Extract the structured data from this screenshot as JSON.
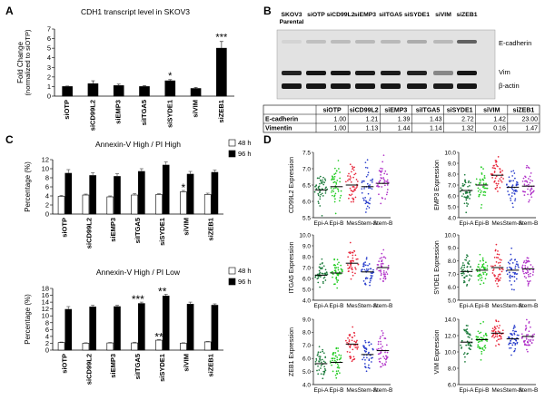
{
  "panels": {
    "A": {
      "letter": "A"
    },
    "B": {
      "letter": "B"
    },
    "C": {
      "letter": "C"
    },
    "D": {
      "letter": "D"
    }
  },
  "chart_data": [
    {
      "id": "A",
      "type": "bar",
      "title": "CDH1 transcript level in SKOV3",
      "ylabel": "Fold Change",
      "ylabel2": "(normalized to siOTP)",
      "categories": [
        "siOTP",
        "siCD99L2",
        "siEMP3",
        "siITGA5",
        "siSYDE1",
        "siVIM",
        "siZEB1"
      ],
      "values": [
        1.0,
        1.3,
        1.1,
        1.0,
        1.6,
        0.8,
        5.0
      ],
      "errors": [
        0.05,
        0.3,
        0.15,
        0.1,
        0.12,
        0.1,
        0.7
      ],
      "significance": [
        "",
        "",
        "",
        "",
        "*",
        "",
        "***"
      ],
      "ylim": [
        0,
        7
      ],
      "yticks": [
        "0",
        "1",
        "2",
        "3",
        "4",
        "5",
        "6",
        "7"
      ]
    },
    {
      "id": "C1",
      "type": "bar",
      "title": "Annexin-V High / PI High",
      "ylabel": "Percentage (%)",
      "categories": [
        "siOTP",
        "siCD99L2",
        "siEMP3",
        "siITGA5",
        "siSYDE1",
        "siVIM",
        "siZEB1"
      ],
      "series": [
        {
          "name": "48 h",
          "values": [
            3.9,
            4.2,
            3.8,
            4.2,
            4.3,
            4.9,
            4.3
          ],
          "errors": [
            0.2,
            0.2,
            0.2,
            0.3,
            0.2,
            0.3,
            0.3
          ]
        },
        {
          "name": "96 h",
          "values": [
            9.0,
            8.5,
            8.3,
            9.4,
            10.8,
            8.8,
            9.2
          ],
          "errors": [
            0.8,
            0.6,
            0.6,
            0.6,
            0.7,
            0.6,
            0.5
          ]
        }
      ],
      "significance": [
        "",
        "",
        "",
        "",
        "",
        "*",
        ""
      ],
      "ylim": [
        0,
        12
      ],
      "yticks": [
        "0",
        "2",
        "4",
        "6",
        "8",
        "10",
        "12"
      ]
    },
    {
      "id": "C2",
      "type": "bar",
      "title": "Annexin-V High / PI Low",
      "ylabel": "Percentage (%)",
      "categories": [
        "siOTP",
        "siCD99L2",
        "siEMP3",
        "siITGA5",
        "siSYDE1",
        "siVIM",
        "siZEB1"
      ],
      "series": [
        {
          "name": "48 h",
          "values": [
            2.2,
            2.0,
            2.1,
            2.1,
            2.9,
            2.0,
            2.4
          ],
          "errors": [
            0.15,
            0.15,
            0.15,
            0.2,
            0.2,
            0.15,
            0.15
          ]
        },
        {
          "name": "96 h",
          "values": [
            11.9,
            12.6,
            12.7,
            13.6,
            15.8,
            13.4,
            13.1
          ],
          "errors": [
            0.8,
            0.5,
            0.4,
            0.4,
            0.5,
            0.6,
            0.4
          ]
        }
      ],
      "significance_48": [
        "",
        "",
        "",
        "",
        "**",
        "",
        ""
      ],
      "significance_96": [
        "",
        "",
        "",
        "***",
        "**",
        "",
        ""
      ],
      "ylim": [
        0,
        18
      ],
      "yticks": [
        "0",
        "2",
        "4",
        "6",
        "8",
        "10",
        "12",
        "14",
        "16",
        "18"
      ]
    },
    {
      "id": "D",
      "type": "scatter",
      "categories": [
        "Epi-A",
        "Epi-B",
        "Mes",
        "Stem-A",
        "Stem-B"
      ],
      "colors": [
        "#1a7a3a",
        "#22cc22",
        "#e8283c",
        "#2a3ecc",
        "#b030c8"
      ],
      "plots": [
        {
          "ylabel": "CD99L2 Expression",
          "yticks": [
            "5.5",
            "6.0",
            "6.5",
            "7.0",
            "7.5"
          ],
          "ylim": [
            5.5,
            7.5
          ],
          "medians": [
            6.35,
            6.45,
            6.5,
            6.45,
            6.55
          ],
          "spreads": [
            0.3,
            0.35,
            0.35,
            0.35,
            0.35
          ]
        },
        {
          "ylabel": "EMP3 Expression",
          "yticks": [
            "4.0",
            "5.0",
            "6.0",
            "7.0",
            "8.0",
            "9.0",
            "10.0"
          ],
          "ylim": [
            4.0,
            10.0
          ],
          "medians": [
            6.5,
            7.0,
            7.9,
            6.8,
            6.9
          ],
          "spreads": [
            0.7,
            0.8,
            0.8,
            0.8,
            0.8
          ]
        },
        {
          "ylabel": "ITGA5 Expression",
          "yticks": [
            "4.0",
            "5.0",
            "6.0",
            "7.0",
            "8.0",
            "9.0",
            "10.0"
          ],
          "ylim": [
            4.0,
            10.0
          ],
          "medians": [
            6.3,
            6.5,
            7.4,
            6.6,
            7.0
          ],
          "spreads": [
            0.6,
            0.7,
            0.7,
            0.7,
            0.7
          ]
        },
        {
          "ylabel": "SYDE1 Expression",
          "yticks": [
            "5.0",
            "6.0",
            "7.0",
            "8.0",
            "9.0",
            "10.0"
          ],
          "ylim": [
            5.0,
            10.0
          ],
          "medians": [
            7.2,
            7.3,
            7.5,
            7.3,
            7.4
          ],
          "spreads": [
            0.55,
            0.6,
            0.6,
            0.6,
            0.55
          ]
        },
        {
          "ylabel": "ZEB1 Expression",
          "yticks": [
            "4.0",
            "5.0",
            "6.0",
            "7.0",
            "8.0",
            "9.0"
          ],
          "ylim": [
            4.0,
            9.0
          ],
          "medians": [
            5.6,
            5.7,
            7.1,
            6.3,
            6.6
          ],
          "spreads": [
            0.6,
            0.6,
            0.7,
            0.7,
            0.7
          ]
        },
        {
          "ylabel": "VIM Expression",
          "yticks": [
            "6.0",
            "8.0",
            "10.0",
            "12.0",
            "14.0"
          ],
          "ylim": [
            6.0,
            14.0
          ],
          "medians": [
            11.2,
            11.5,
            12.3,
            11.6,
            11.9
          ],
          "spreads": [
            1.0,
            0.9,
            0.7,
            0.9,
            0.8
          ]
        }
      ]
    }
  ],
  "blot": {
    "lanes": [
      "SKOV3 Parental",
      "siOTP",
      "siCD99L2",
      "siEMP3",
      "siITGA5",
      "siSYDE1",
      "siVIM",
      "siZEB1"
    ],
    "lane_line1": [
      "SKOV3",
      "siOTP",
      "siCD99L2",
      "siEMP3",
      "siITGA5",
      "siSYDE1",
      "siVIM",
      "siZEB1"
    ],
    "lane_line2": [
      "Parental",
      "",
      "",
      "",
      "",
      "",
      "",
      ""
    ],
    "bands": [
      "E-cadherin",
      "Vim",
      "β-actin"
    ],
    "table": {
      "columns": [
        "siOTP",
        "siCD99L2",
        "siEMP3",
        "siITGA5",
        "siSYDE1",
        "siVIM",
        "siZEB1"
      ],
      "rows": [
        {
          "label": "E-cadherin",
          "values": [
            "1.00",
            "1.21",
            "1.39",
            "1.43",
            "2.72",
            "1.42",
            "23.00"
          ]
        },
        {
          "label": "Vimentin",
          "values": [
            "1.00",
            "1.13",
            "1.44",
            "1.14",
            "1.32",
            "0.16",
            "1.47"
          ]
        }
      ]
    }
  }
}
